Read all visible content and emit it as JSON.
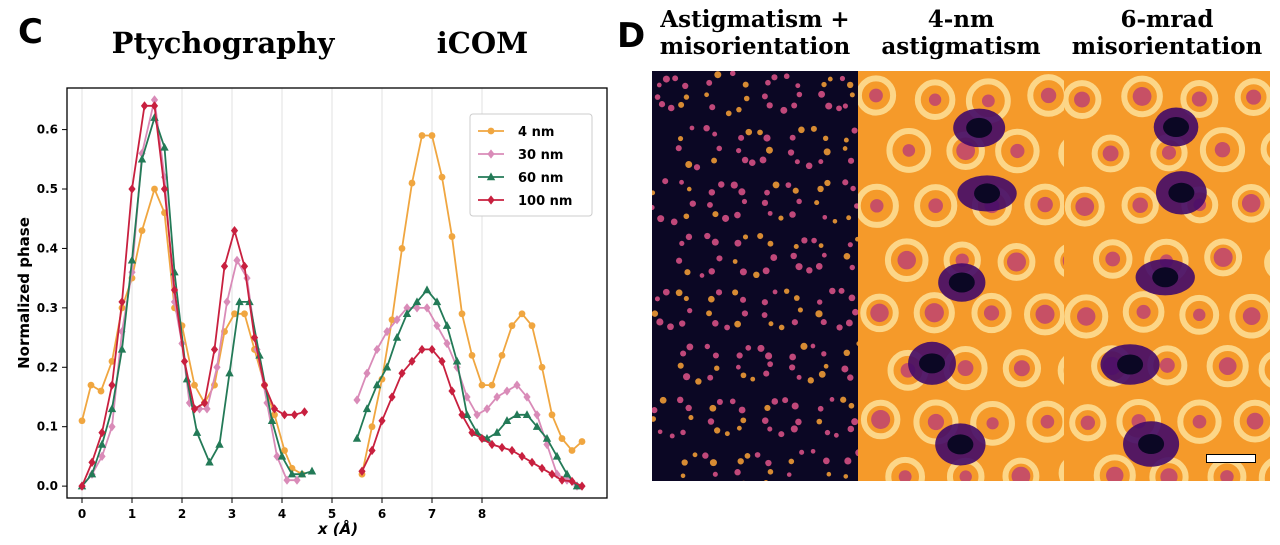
{
  "panel_c": {
    "letter": "C",
    "left_title": "Ptychography",
    "right_title": "iCOM"
  },
  "panel_d": {
    "letter": "D",
    "columns": [
      {
        "line1": "Astigmatism +",
        "line2": "misorientation"
      },
      {
        "line1": "4-nm",
        "line2": "astigmatism"
      },
      {
        "line1": "6-mrad",
        "line2": "misorientation"
      }
    ]
  },
  "colors": {
    "4nm": "#F0A640",
    "30nm": "#D98BB8",
    "60nm": "#237A57",
    "100nm": "#C8203F",
    "inferno_dark": "#0b0724",
    "inferno_bright": "#fcb531"
  },
  "chart_data": {
    "type": "line",
    "xlabel": "x (Å)",
    "ylabel": "Normalized phase",
    "x_ticks": [
      "0",
      "1",
      "2",
      "3",
      "4",
      "5",
      "6",
      "7",
      "8"
    ],
    "y_ticks": [
      "0.0",
      "0.1",
      "0.2",
      "0.3",
      "0.4",
      "0.5",
      "0.6"
    ],
    "xlim": [
      -0.3,
      10.5
    ],
    "ylim": [
      -0.02,
      0.67
    ],
    "legend_position": "top-right",
    "series": [
      {
        "name": "4 nm",
        "marker": "circle",
        "ptycho": [
          [
            0,
            0.11
          ],
          [
            0.18,
            0.17
          ],
          [
            0.38,
            0.16
          ],
          [
            0.6,
            0.21
          ],
          [
            0.8,
            0.3
          ],
          [
            1,
            0.35
          ],
          [
            1.2,
            0.43
          ],
          [
            1.45,
            0.5
          ],
          [
            1.65,
            0.46
          ],
          [
            1.85,
            0.3
          ],
          [
            2,
            0.27
          ],
          [
            2.25,
            0.17
          ],
          [
            2.45,
            0.14
          ],
          [
            2.65,
            0.17
          ],
          [
            2.85,
            0.26
          ],
          [
            3.05,
            0.29
          ],
          [
            3.25,
            0.29
          ],
          [
            3.45,
            0.23
          ],
          [
            3.65,
            0.17
          ],
          [
            3.85,
            0.12
          ],
          [
            4.05,
            0.06
          ],
          [
            4.2,
            0.03
          ],
          [
            4.4,
            0.02
          ]
        ],
        "icom": [
          [
            5.6,
            0.02
          ],
          [
            5.8,
            0.1
          ],
          [
            6,
            0.18
          ],
          [
            6.2,
            0.28
          ],
          [
            6.4,
            0.4
          ],
          [
            6.6,
            0.51
          ],
          [
            6.8,
            0.59
          ],
          [
            7,
            0.59
          ],
          [
            7.2,
            0.52
          ],
          [
            7.4,
            0.42
          ],
          [
            7.6,
            0.29
          ],
          [
            7.8,
            0.22
          ],
          [
            8,
            0.17
          ],
          [
            8.2,
            0.17
          ],
          [
            8.4,
            0.22
          ],
          [
            8.6,
            0.27
          ],
          [
            8.8,
            0.29
          ],
          [
            9,
            0.27
          ],
          [
            9.2,
            0.2
          ],
          [
            9.4,
            0.12
          ],
          [
            9.6,
            0.08
          ],
          [
            9.8,
            0.06
          ],
          [
            10,
            0.075
          ]
        ]
      },
      {
        "name": "30 nm",
        "marker": "diamond",
        "ptycho": [
          [
            0,
            0
          ],
          [
            0.2,
            0.02
          ],
          [
            0.4,
            0.05
          ],
          [
            0.6,
            0.1
          ],
          [
            0.8,
            0.26
          ],
          [
            1,
            0.36
          ],
          [
            1.2,
            0.56
          ],
          [
            1.45,
            0.65
          ],
          [
            1.65,
            0.52
          ],
          [
            1.85,
            0.31
          ],
          [
            2,
            0.24
          ],
          [
            2.15,
            0.14
          ],
          [
            2.35,
            0.13
          ],
          [
            2.5,
            0.13
          ],
          [
            2.7,
            0.2
          ],
          [
            2.9,
            0.31
          ],
          [
            3.1,
            0.38
          ],
          [
            3.3,
            0.35
          ],
          [
            3.5,
            0.23
          ],
          [
            3.7,
            0.14
          ],
          [
            3.9,
            0.05
          ],
          [
            4.1,
            0.01
          ],
          [
            4.3,
            0.01
          ]
        ],
        "icom": [
          [
            5.5,
            0.145
          ],
          [
            5.7,
            0.19
          ],
          [
            5.9,
            0.23
          ],
          [
            6.1,
            0.26
          ],
          [
            6.3,
            0.28
          ],
          [
            6.5,
            0.3
          ],
          [
            6.7,
            0.3
          ],
          [
            6.9,
            0.3
          ],
          [
            7.1,
            0.27
          ],
          [
            7.3,
            0.24
          ],
          [
            7.5,
            0.2
          ],
          [
            7.7,
            0.15
          ],
          [
            7.9,
            0.12
          ],
          [
            8.1,
            0.13
          ],
          [
            8.3,
            0.15
          ],
          [
            8.5,
            0.16
          ],
          [
            8.7,
            0.17
          ],
          [
            8.9,
            0.15
          ],
          [
            9.1,
            0.12
          ],
          [
            9.3,
            0.07
          ],
          [
            9.5,
            0.02
          ],
          [
            9.7,
            0.01
          ],
          [
            9.9,
            0
          ]
        ]
      },
      {
        "name": "60 nm",
        "marker": "triangle",
        "ptycho": [
          [
            0,
            0
          ],
          [
            0.2,
            0.02
          ],
          [
            0.4,
            0.07
          ],
          [
            0.6,
            0.13
          ],
          [
            0.8,
            0.23
          ],
          [
            1,
            0.38
          ],
          [
            1.2,
            0.55
          ],
          [
            1.45,
            0.62
          ],
          [
            1.65,
            0.57
          ],
          [
            1.85,
            0.36
          ],
          [
            2.1,
            0.18
          ],
          [
            2.3,
            0.09
          ],
          [
            2.55,
            0.04
          ],
          [
            2.75,
            0.07
          ],
          [
            2.95,
            0.19
          ],
          [
            3.15,
            0.31
          ],
          [
            3.35,
            0.31
          ],
          [
            3.55,
            0.22
          ],
          [
            3.8,
            0.11
          ],
          [
            4,
            0.05
          ],
          [
            4.2,
            0.02
          ],
          [
            4.4,
            0.02
          ],
          [
            4.6,
            0.025
          ]
        ],
        "icom": [
          [
            5.5,
            0.08
          ],
          [
            5.7,
            0.13
          ],
          [
            5.9,
            0.17
          ],
          [
            6.1,
            0.2
          ],
          [
            6.3,
            0.25
          ],
          [
            6.5,
            0.29
          ],
          [
            6.7,
            0.31
          ],
          [
            6.9,
            0.33
          ],
          [
            7.1,
            0.31
          ],
          [
            7.3,
            0.27
          ],
          [
            7.5,
            0.21
          ],
          [
            7.7,
            0.12
          ],
          [
            7.9,
            0.09
          ],
          [
            8.1,
            0.08
          ],
          [
            8.3,
            0.09
          ],
          [
            8.5,
            0.11
          ],
          [
            8.7,
            0.12
          ],
          [
            8.9,
            0.12
          ],
          [
            9.1,
            0.1
          ],
          [
            9.3,
            0.08
          ],
          [
            9.5,
            0.05
          ],
          [
            9.7,
            0.02
          ],
          [
            9.9,
            0
          ]
        ]
      },
      {
        "name": "100 nm",
        "marker": "diamond",
        "ptycho": [
          [
            0,
            0
          ],
          [
            0.2,
            0.04
          ],
          [
            0.4,
            0.09
          ],
          [
            0.6,
            0.17
          ],
          [
            0.8,
            0.31
          ],
          [
            1,
            0.5
          ],
          [
            1.25,
            0.64
          ],
          [
            1.45,
            0.64
          ],
          [
            1.65,
            0.5
          ],
          [
            1.85,
            0.33
          ],
          [
            2.05,
            0.21
          ],
          [
            2.25,
            0.13
          ],
          [
            2.45,
            0.14
          ],
          [
            2.65,
            0.23
          ],
          [
            2.85,
            0.37
          ],
          [
            3.05,
            0.43
          ],
          [
            3.25,
            0.37
          ],
          [
            3.45,
            0.25
          ],
          [
            3.65,
            0.17
          ],
          [
            3.85,
            0.13
          ],
          [
            4.05,
            0.12
          ],
          [
            4.25,
            0.12
          ],
          [
            4.45,
            0.125
          ]
        ],
        "icom": [
          [
            5.6,
            0.025
          ],
          [
            5.8,
            0.06
          ],
          [
            6,
            0.11
          ],
          [
            6.2,
            0.15
          ],
          [
            6.4,
            0.19
          ],
          [
            6.6,
            0.21
          ],
          [
            6.8,
            0.23
          ],
          [
            7,
            0.23
          ],
          [
            7.2,
            0.21
          ],
          [
            7.4,
            0.16
          ],
          [
            7.6,
            0.12
          ],
          [
            7.8,
            0.09
          ],
          [
            8,
            0.08
          ],
          [
            8.2,
            0.07
          ],
          [
            8.4,
            0.065
          ],
          [
            8.6,
            0.06
          ],
          [
            8.8,
            0.05
          ],
          [
            9,
            0.04
          ],
          [
            9.2,
            0.03
          ],
          [
            9.4,
            0.02
          ],
          [
            9.6,
            0.01
          ],
          [
            9.8,
            0.008
          ],
          [
            10,
            0
          ]
        ]
      }
    ]
  }
}
